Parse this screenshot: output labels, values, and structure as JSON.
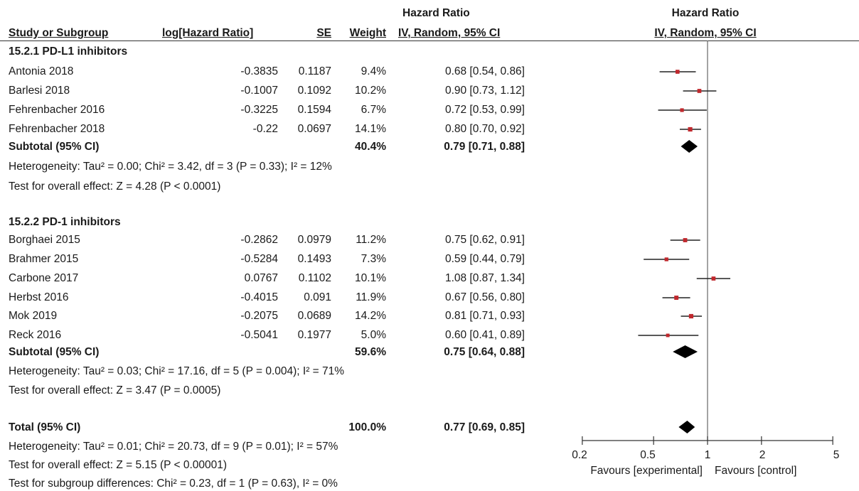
{
  "header": {
    "hr_top": "Hazard Ratio",
    "study_col": "Study or Subgroup",
    "loghr_col": "log[Hazard Ratio]",
    "se_col": "SE",
    "weight_col": "Weight",
    "ci_col": "IV, Random, 95% CI",
    "plot_top": "Hazard Ratio",
    "plot_sub": "IV, Random, 95% CI"
  },
  "groups": [
    {
      "title": "15.2.1 PD-L1 inhibitors",
      "studies": [
        {
          "name": "Antonia 2018",
          "loghr": "-0.3835",
          "se": "0.1187",
          "weight": "9.4%",
          "ci": "0.68 [0.54, 0.86]"
        },
        {
          "name": "Barlesi 2018",
          "loghr": "-0.1007",
          "se": "0.1092",
          "weight": "10.2%",
          "ci": "0.90 [0.73, 1.12]"
        },
        {
          "name": "Fehrenbacher 2016",
          "loghr": "-0.3225",
          "se": "0.1594",
          "weight": "6.7%",
          "ci": "0.72 [0.53, 0.99]"
        },
        {
          "name": "Fehrenbacher 2018",
          "loghr": "-0.22",
          "se": "0.0697",
          "weight": "14.1%",
          "ci": "0.80 [0.70, 0.92]"
        }
      ],
      "subtotal": {
        "label": "Subtotal (95% CI)",
        "weight": "40.4%",
        "ci": "0.79 [0.71, 0.88]"
      },
      "heterogeneity": "Heterogeneity: Tau² = 0.00; Chi² = 3.42, df = 3 (P = 0.33); I² = 12%",
      "overall": "Test for overall effect: Z = 4.28 (P < 0.0001)"
    },
    {
      "title": "15.2.2 PD-1 inhibitors",
      "studies": [
        {
          "name": "Borghaei 2015",
          "loghr": "-0.2862",
          "se": "0.0979",
          "weight": "11.2%",
          "ci": "0.75 [0.62, 0.91]"
        },
        {
          "name": "Brahmer 2015",
          "loghr": "-0.5284",
          "se": "0.1493",
          "weight": "7.3%",
          "ci": "0.59 [0.44, 0.79]"
        },
        {
          "name": "Carbone 2017",
          "loghr": "0.0767",
          "se": "0.1102",
          "weight": "10.1%",
          "ci": "1.08 [0.87, 1.34]"
        },
        {
          "name": "Herbst 2016",
          "loghr": "-0.4015",
          "se": "0.091",
          "weight": "11.9%",
          "ci": "0.67 [0.56, 0.80]"
        },
        {
          "name": "Mok 2019",
          "loghr": "-0.2075",
          "se": "0.0689",
          "weight": "14.2%",
          "ci": "0.81 [0.71, 0.93]"
        },
        {
          "name": "Reck 2016",
          "loghr": "-0.5041",
          "se": "0.1977",
          "weight": "5.0%",
          "ci": "0.60 [0.41, 0.89]"
        }
      ],
      "subtotal": {
        "label": "Subtotal (95% CI)",
        "weight": "59.6%",
        "ci": "0.75 [0.64, 0.88]"
      },
      "heterogeneity": "Heterogeneity: Tau² = 0.03; Chi² = 17.16, df = 5 (P = 0.004); I² = 71%",
      "overall": "Test for overall effect: Z = 3.47 (P = 0.0005)"
    }
  ],
  "total": {
    "label": "Total (95% CI)",
    "weight": "100.0%",
    "ci": "0.77 [0.69, 0.85]",
    "heterogeneity": "Heterogeneity: Tau² = 0.01; Chi² = 20.73, df = 9 (P = 0.01); I² = 57%",
    "overall": "Test for overall effect: Z = 5.15 (P < 0.00001)",
    "subgroup": "Test for subgroup differences: Chi² = 0.23, df = 1 (P = 0.63), I² = 0%"
  },
  "axis": {
    "ticks": [
      "0.2",
      "0.5",
      "1",
      "2",
      "5"
    ],
    "favours_left": "Favours [experimental]",
    "favours_right": "Favours [control]"
  },
  "colors": {
    "marker": "#c0282d",
    "line": "#222222",
    "diamond": "#000000"
  },
  "chart_data": {
    "type": "forest",
    "scale": "log",
    "xlim": [
      0.2,
      5
    ],
    "reference_line": 1,
    "studies": [
      {
        "name": "Antonia 2018",
        "hr": 0.68,
        "lo": 0.54,
        "hi": 0.86,
        "weight": 9.4
      },
      {
        "name": "Barlesi 2018",
        "hr": 0.9,
        "lo": 0.73,
        "hi": 1.12,
        "weight": 10.2
      },
      {
        "name": "Fehrenbacher 2016",
        "hr": 0.72,
        "lo": 0.53,
        "hi": 0.99,
        "weight": 6.7
      },
      {
        "name": "Fehrenbacher 2018",
        "hr": 0.8,
        "lo": 0.7,
        "hi": 0.92,
        "weight": 14.1
      },
      {
        "name": "Borghaei 2015",
        "hr": 0.75,
        "lo": 0.62,
        "hi": 0.91,
        "weight": 11.2
      },
      {
        "name": "Brahmer 2015",
        "hr": 0.59,
        "lo": 0.44,
        "hi": 0.79,
        "weight": 7.3
      },
      {
        "name": "Carbone 2017",
        "hr": 1.08,
        "lo": 0.87,
        "hi": 1.34,
        "weight": 10.1
      },
      {
        "name": "Herbst 2016",
        "hr": 0.67,
        "lo": 0.56,
        "hi": 0.8,
        "weight": 11.9
      },
      {
        "name": "Mok 2019",
        "hr": 0.81,
        "lo": 0.71,
        "hi": 0.93,
        "weight": 14.2
      },
      {
        "name": "Reck 2016",
        "hr": 0.6,
        "lo": 0.41,
        "hi": 0.89,
        "weight": 5.0
      }
    ],
    "summaries": [
      {
        "name": "Subtotal (95% CI)",
        "group": "15.2.1 PD-L1 inhibitors",
        "hr": 0.79,
        "lo": 0.71,
        "hi": 0.88
      },
      {
        "name": "Subtotal (95% CI)",
        "group": "15.2.2 PD-1 inhibitors",
        "hr": 0.75,
        "lo": 0.64,
        "hi": 0.88
      },
      {
        "name": "Total (95% CI)",
        "hr": 0.77,
        "lo": 0.69,
        "hi": 0.85
      }
    ]
  }
}
